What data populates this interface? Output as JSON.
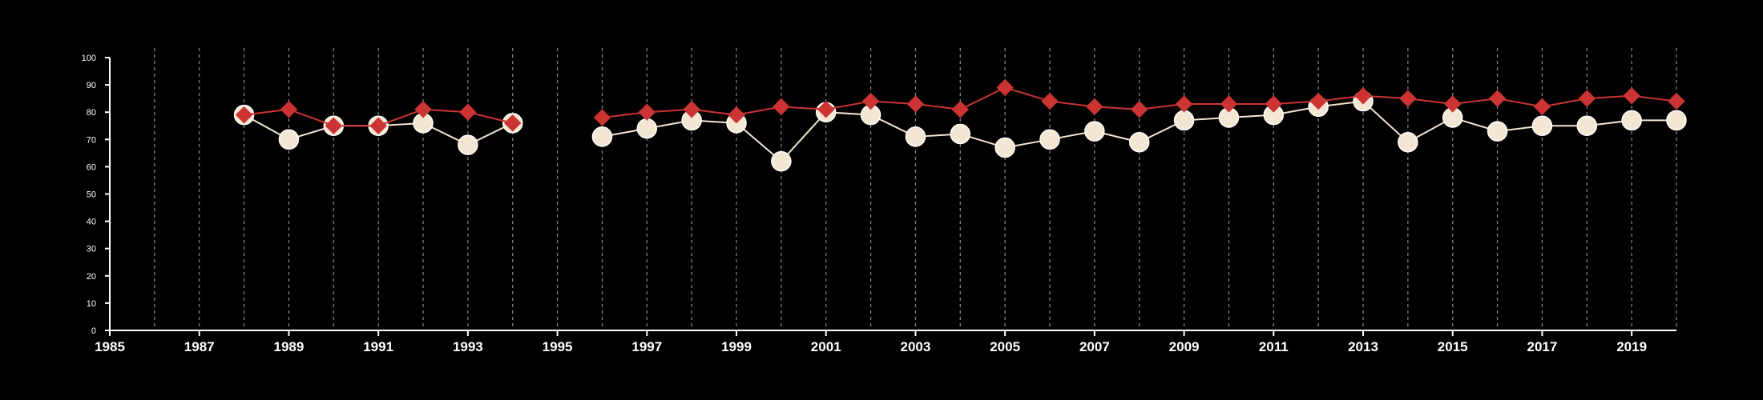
{
  "chart_data": {
    "type": "line",
    "title": "",
    "xlabel": "",
    "ylabel": "",
    "xlim": [
      1985,
      2020
    ],
    "ylim": [
      0,
      100
    ],
    "yticks": [
      0,
      10,
      20,
      30,
      40,
      50,
      60,
      70,
      80,
      90,
      100
    ],
    "xticks": [
      1985,
      1987,
      1989,
      1991,
      1993,
      1995,
      1997,
      1999,
      2001,
      2003,
      2005,
      2007,
      2009,
      2011,
      2013,
      2015,
      2017,
      2019
    ],
    "grid": "vertical dashed lines at every year",
    "legend": "none",
    "colors": {
      "background": "#000000",
      "axis": "#ffffff",
      "grid": "#8a8a8a",
      "series_red": "#cc3333",
      "series_white": "#f3e6d2"
    },
    "series": [
      {
        "marker": "diamond",
        "color": "#cc3333",
        "x": [
          1988,
          1989,
          1990,
          1991,
          1992,
          1993,
          1994,
          1996,
          1997,
          1998,
          1999,
          2000,
          2001,
          2002,
          2003,
          2004,
          2005,
          2006,
          2007,
          2008,
          2009,
          2010,
          2011,
          2012,
          2013,
          2014,
          2015,
          2016,
          2017,
          2018,
          2019,
          2020
        ],
        "values": [
          79,
          81,
          75,
          75,
          81,
          80,
          76,
          78,
          80,
          81,
          79,
          82,
          81,
          84,
          83,
          81,
          89,
          84,
          82,
          81,
          83,
          83,
          83,
          84,
          86,
          85,
          83,
          85,
          82,
          85,
          86,
          84
        ]
      },
      {
        "marker": "circle",
        "color": "#f3e6d2",
        "x": [
          1988,
          1989,
          1990,
          1991,
          1992,
          1993,
          1994,
          1996,
          1997,
          1998,
          1999,
          2000,
          2001,
          2002,
          2003,
          2004,
          2005,
          2006,
          2007,
          2008,
          2009,
          2010,
          2011,
          2012,
          2013,
          2014,
          2015,
          2016,
          2017,
          2018,
          2019,
          2020
        ],
        "values": [
          79,
          70,
          75,
          75,
          76,
          68,
          76,
          71,
          74,
          77,
          76,
          62,
          80,
          79,
          71,
          72,
          67,
          70,
          73,
          69,
          77,
          78,
          79,
          82,
          84,
          69,
          78,
          73,
          75,
          75,
          77,
          77
        ]
      }
    ]
  }
}
